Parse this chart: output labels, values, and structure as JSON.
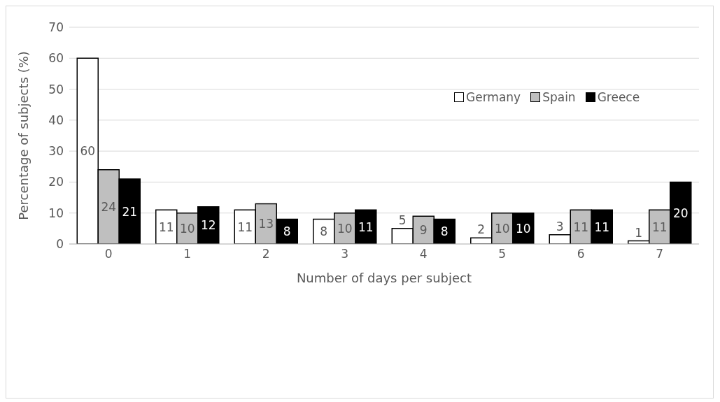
{
  "chart_data": {
    "type": "bar",
    "xlabel": "Number of days per subject",
    "ylabel": "Percentage of subjects (%)",
    "categories": [
      "0",
      "1",
      "2",
      "3",
      "4",
      "5",
      "6",
      "7"
    ],
    "series": [
      {
        "name": "Germany",
        "color": "#ffffff",
        "values": [
          60,
          11,
          11,
          8,
          5,
          2,
          3,
          1
        ]
      },
      {
        "name": "Spain",
        "color": "#bfbfbf",
        "values": [
          24,
          10,
          13,
          10,
          9,
          10,
          11,
          11
        ]
      },
      {
        "name": "Greece",
        "color": "#000000",
        "values": [
          21,
          12,
          8,
          11,
          8,
          10,
          11,
          20
        ]
      }
    ],
    "ylim": [
      0,
      70
    ],
    "yticks": [
      0,
      10,
      20,
      30,
      40,
      50,
      60,
      70
    ],
    "grid": "y",
    "legend": "top right",
    "data_labels": true
  }
}
